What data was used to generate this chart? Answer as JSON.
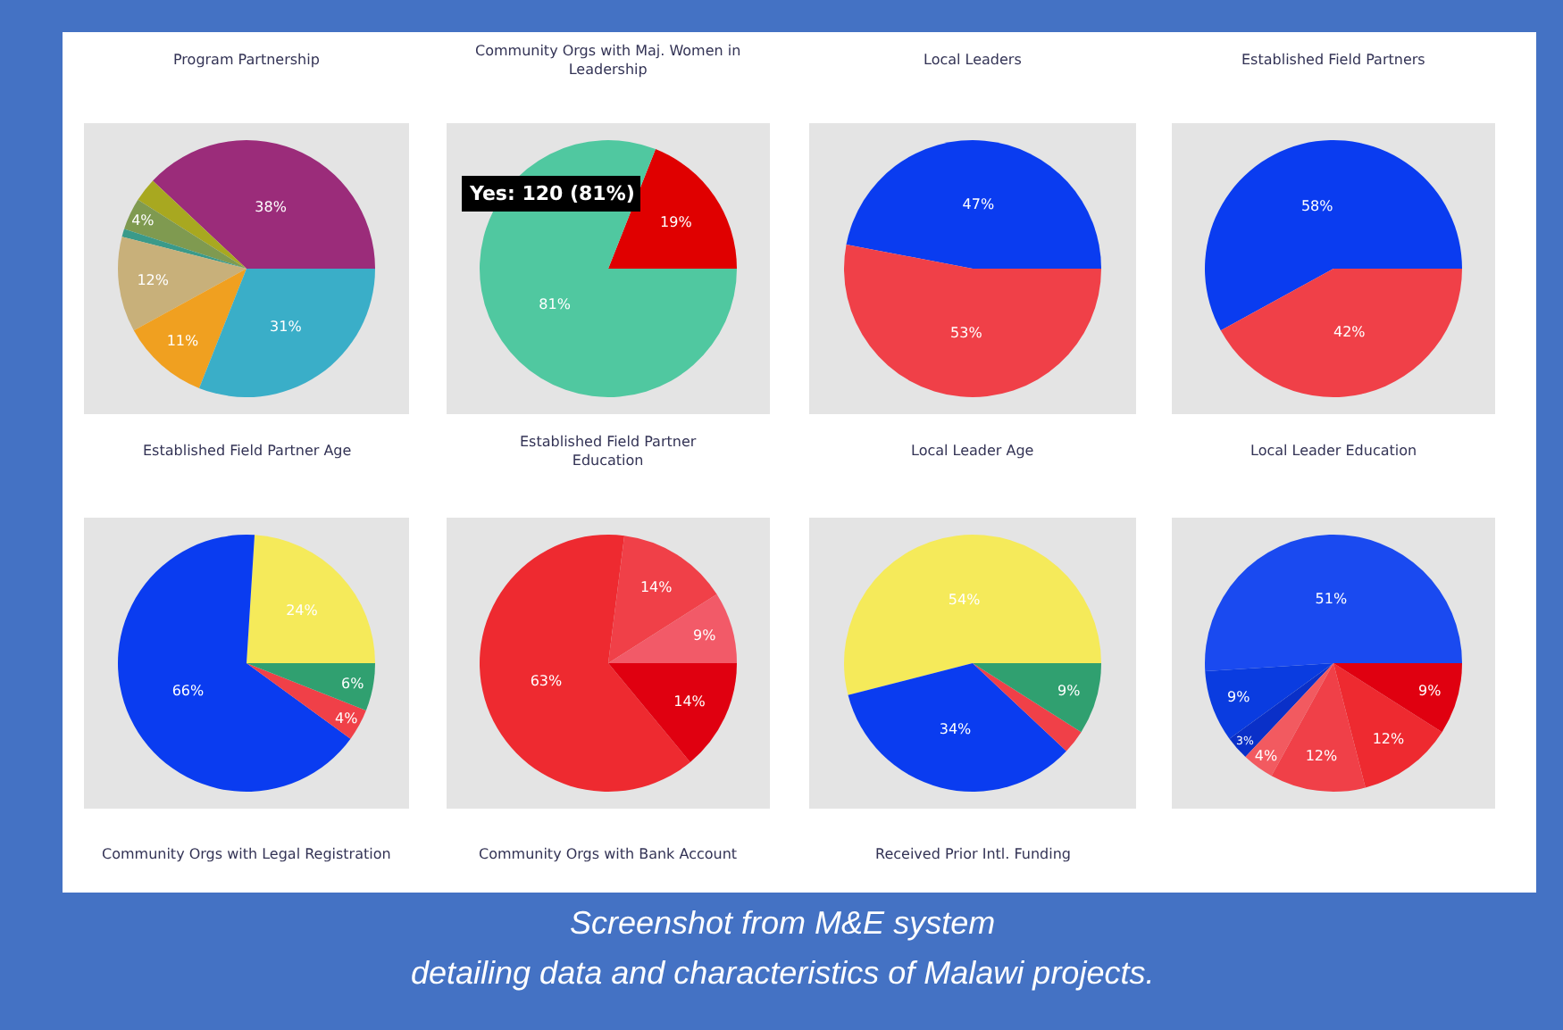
{
  "chart_data": [
    {
      "type": "pie",
      "title": "Program Partnership",
      "categories": [
        null,
        null,
        null,
        null,
        null,
        null,
        null
      ],
      "values": [
        38,
        3,
        4,
        1,
        12,
        11,
        31
      ],
      "colors": [
        "#9b2c7a",
        "#a8a820",
        "#7f9a50",
        "#3a9a8a",
        "#c8b07a",
        "#f0a020",
        "#3aaec8"
      ],
      "value_labels": [
        "38%",
        null,
        "4%",
        null,
        "12%",
        "11%",
        "31%"
      ]
    },
    {
      "type": "pie",
      "title": "Community Orgs with Maj. Women in Leadership",
      "categories": [
        null,
        null
      ],
      "values": [
        19,
        81
      ],
      "colors": [
        "#e00000",
        "#50c8a0"
      ],
      "value_labels": [
        "19%",
        "81%"
      ],
      "annotations": [
        "Yes: 120 (81%)"
      ]
    },
    {
      "type": "pie",
      "title": "Local Leaders",
      "categories": [
        null,
        null
      ],
      "values": [
        47,
        53
      ],
      "colors": [
        "#0a3cf0",
        "#f04048"
      ],
      "value_labels": [
        "47%",
        "53%"
      ]
    },
    {
      "type": "pie",
      "title": "Established Field Partners",
      "categories": [
        null,
        null
      ],
      "values": [
        58,
        42
      ],
      "colors": [
        "#0a3cf0",
        "#f04048"
      ],
      "value_labels": [
        "58%",
        "42%"
      ]
    },
    {
      "type": "pie",
      "title": "Established Field Partner Age",
      "categories": [
        null,
        null,
        null,
        null
      ],
      "values": [
        24,
        66,
        4,
        6
      ],
      "colors": [
        "#f5ea5a",
        "#0a3cf0",
        "#f04048",
        "#30a070"
      ],
      "value_labels": [
        "24%",
        "66%",
        "4%",
        "6%"
      ]
    },
    {
      "type": "pie",
      "title": "Established Field Partner Education",
      "categories": [
        null,
        null,
        null,
        null
      ],
      "values": [
        9,
        14,
        63,
        14
      ],
      "colors": [
        "#f25a68",
        "#f04048",
        "#ee2a30",
        "#e00010"
      ],
      "value_labels": [
        "9%",
        "14%",
        "63%",
        "14%"
      ]
    },
    {
      "type": "pie",
      "title": "Local Leader Age",
      "categories": [
        null,
        null,
        null,
        null
      ],
      "values": [
        54,
        34,
        3,
        9
      ],
      "colors": [
        "#f5ea5a",
        "#0a3cf0",
        "#f04048",
        "#30a070"
      ],
      "value_labels": [
        "54%",
        "34%",
        null,
        "9%"
      ]
    },
    {
      "type": "pie",
      "title": "Local Leader Education",
      "categories": [
        null,
        null,
        null,
        null,
        null,
        null,
        null
      ],
      "values": [
        51,
        9,
        3,
        4,
        12,
        12,
        9
      ],
      "colors": [
        "#1a4af0",
        "#0a3ce0",
        "#0a30c8",
        "#f25a60",
        "#f04048",
        "#ee2a30",
        "#e00010"
      ],
      "value_labels": [
        "51%",
        "9%",
        "3%",
        "4%",
        "12%",
        "12%",
        "9%"
      ]
    },
    {
      "type": "other",
      "annotations": [
        "Community Orgs with Legal Registration",
        "Community Orgs with Bank Account",
        "Received Prior Intl. Funding",
        "Screenshot from M&E system",
        "detailing data and characteristics of Malawi projects."
      ]
    }
  ]
}
